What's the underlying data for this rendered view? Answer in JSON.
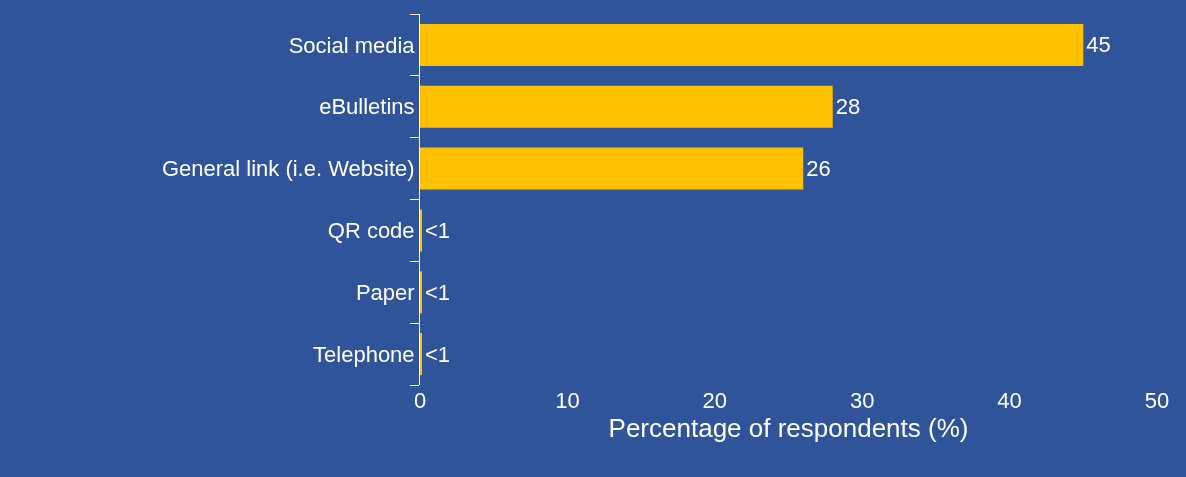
{
  "chart_data": {
    "type": "bar",
    "orientation": "horizontal",
    "xlabel": "Percentage of respondents (%)",
    "categories": [
      "Social media",
      "eBulletins",
      "General link (i.e. Website)",
      "QR code",
      "Paper",
      "Telephone"
    ],
    "values": [
      45,
      28,
      26,
      0.1,
      0.1,
      0.1
    ],
    "value_labels": [
      "45",
      "28",
      "26",
      "<1",
      "<1",
      "<1"
    ],
    "color": "#ffc000",
    "xlim": [
      0,
      50
    ],
    "xticks": [
      0,
      10,
      20,
      30,
      40,
      50
    ]
  }
}
